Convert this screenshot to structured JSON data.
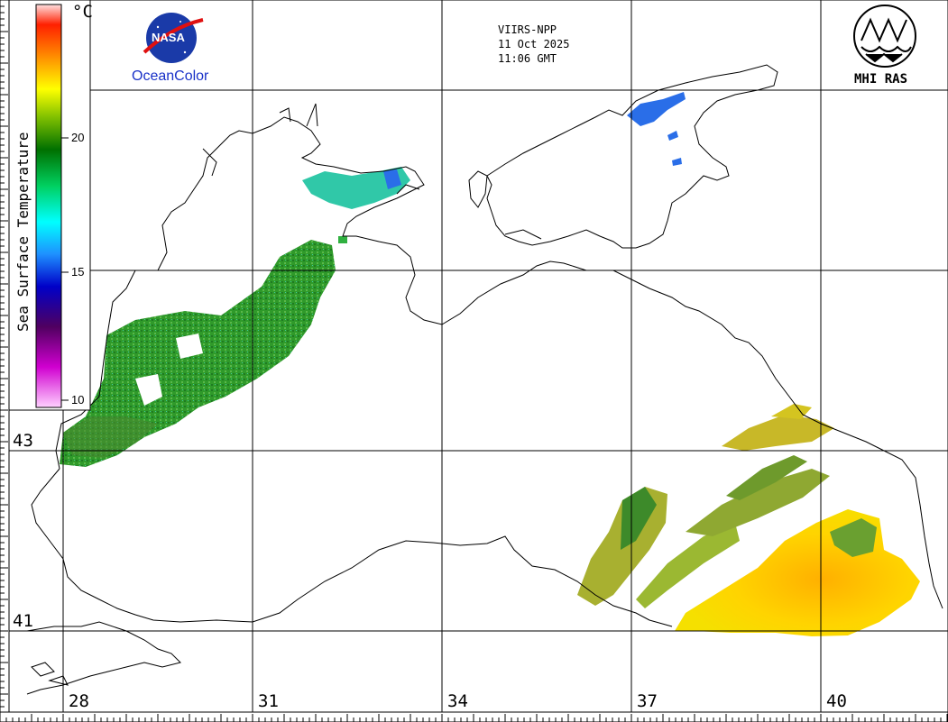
{
  "header": {
    "sensor": "VIIRS-NPP",
    "date": "11 Oct 2025",
    "time": "11:06 GMT"
  },
  "logos": {
    "nasa_text": "NASA",
    "oceancolor_text": "OceanColor",
    "institute_text": "MHI RAS"
  },
  "color_scale": {
    "title": "Sea Surface Temperature",
    "unit": "°C",
    "ticks": [
      "20",
      "15",
      "10"
    ],
    "min": 10,
    "max": 25,
    "colors": [
      "#ffc8ff",
      "#c000c0",
      "#500060",
      "#0000c0",
      "#1e90ff",
      "#00ffff",
      "#00c000",
      "#006400",
      "#ffff00",
      "#ff8000",
      "#ff0000",
      "#ffc8c8"
    ]
  },
  "latitude_labels": [
    "43",
    "41"
  ],
  "longitude_labels": [
    "28",
    "31",
    "34",
    "37",
    "40"
  ]
}
